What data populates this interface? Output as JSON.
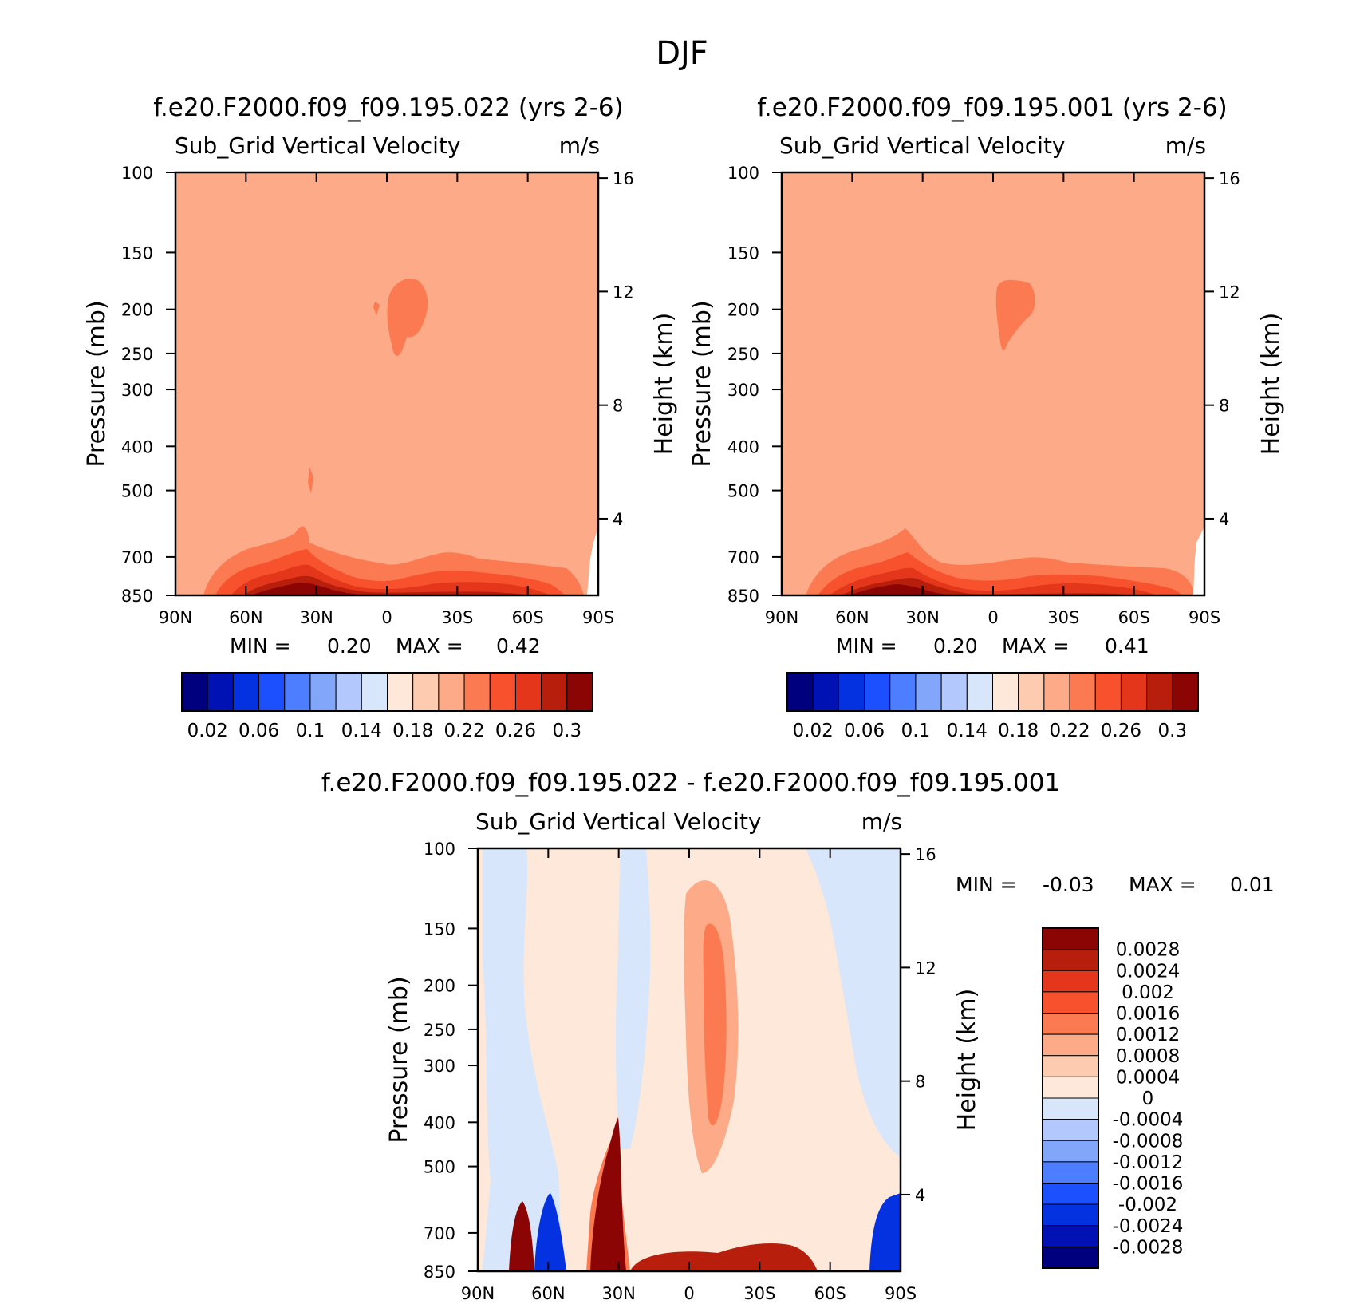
{
  "figure": {
    "title": "DJF"
  },
  "colors": {
    "abs_palette": [
      "#00007f",
      "#0012b4",
      "#0532e0",
      "#1c50ff",
      "#4d7eff",
      "#82a6fa",
      "#b3c8fc",
      "#d7e6fa",
      "#fde8d9",
      "#fdcbb0",
      "#fcaa87",
      "#fb7a51",
      "#f7522d",
      "#e3361a",
      "#b81e0c",
      "#8b0504"
    ],
    "diff_palette": [
      "#00007f",
      "#0012b4",
      "#0532e0",
      "#1c50ff",
      "#4d7eff",
      "#82a6fa",
      "#b3c8fc",
      "#d7e6fa",
      "#fde8d9",
      "#fdcbb0",
      "#fcaa87",
      "#fb7a51",
      "#f7522d",
      "#e3361a",
      "#b81e0c",
      "#8b0504"
    ]
  },
  "chart_data": [
    {
      "type": "heatmap",
      "title": "f.e20.F2000.f09_f09.195.022 (yrs 2-6)",
      "subtitle_left": "Sub_Grid Vertical Velocity",
      "subtitle_right": "m/s",
      "ylabel": "Pressure (mb)",
      "ylabel_right": "Height (km)",
      "x_ticks": [
        "90N",
        "60N",
        "30N",
        "0",
        "30S",
        "60S",
        "90S"
      ],
      "y_ticks": [
        100,
        150,
        200,
        250,
        300,
        400,
        500,
        700,
        850
      ],
      "y_right_ticks": [
        16,
        12,
        8,
        4
      ],
      "min_label": "MIN =",
      "min_value": "0.20",
      "max_label": "MAX =",
      "max_value": "0.42",
      "colorbar_labels": [
        "0.02",
        "0.06",
        "0.1",
        "0.14",
        "0.18",
        "0.22",
        "0.26",
        "0.3"
      ]
    },
    {
      "type": "heatmap",
      "title": "f.e20.F2000.f09_f09.195.001 (yrs 2-6)",
      "subtitle_left": "Sub_Grid Vertical Velocity",
      "subtitle_right": "m/s",
      "ylabel": "Pressure (mb)",
      "ylabel_right": "Height (km)",
      "x_ticks": [
        "90N",
        "60N",
        "30N",
        "0",
        "30S",
        "60S",
        "90S"
      ],
      "y_ticks": [
        100,
        150,
        200,
        250,
        300,
        400,
        500,
        700,
        850
      ],
      "y_right_ticks": [
        16,
        12,
        8,
        4
      ],
      "min_label": "MIN =",
      "min_value": "0.20",
      "max_label": "MAX =",
      "max_value": "0.41",
      "colorbar_labels": [
        "0.02",
        "0.06",
        "0.1",
        "0.14",
        "0.18",
        "0.22",
        "0.26",
        "0.3"
      ]
    },
    {
      "type": "heatmap",
      "title": "f.e20.F2000.f09_f09.195.022 - f.e20.F2000.f09_f09.195.001",
      "subtitle_left": "Sub_Grid Vertical Velocity",
      "subtitle_right": "m/s",
      "ylabel": "Pressure (mb)",
      "ylabel_right": "Height (km)",
      "x_ticks": [
        "90N",
        "60N",
        "30N",
        "0",
        "30S",
        "60S",
        "90S"
      ],
      "y_ticks": [
        100,
        150,
        200,
        250,
        300,
        400,
        500,
        700,
        850
      ],
      "y_right_ticks": [
        16,
        12,
        8,
        4
      ],
      "min_label": "MIN =",
      "min_value": "-0.03",
      "max_label": "MAX =",
      "max_value": "0.01",
      "colorbar_labels": [
        "0.0028",
        "0.0024",
        "0.002",
        "0.0016",
        "0.0012",
        "0.0008",
        "0.0004",
        "0",
        "-0.0004",
        "-0.0008",
        "-0.0012",
        "-0.0016",
        "-0.002",
        "-0.0024",
        "-0.0028"
      ]
    }
  ]
}
